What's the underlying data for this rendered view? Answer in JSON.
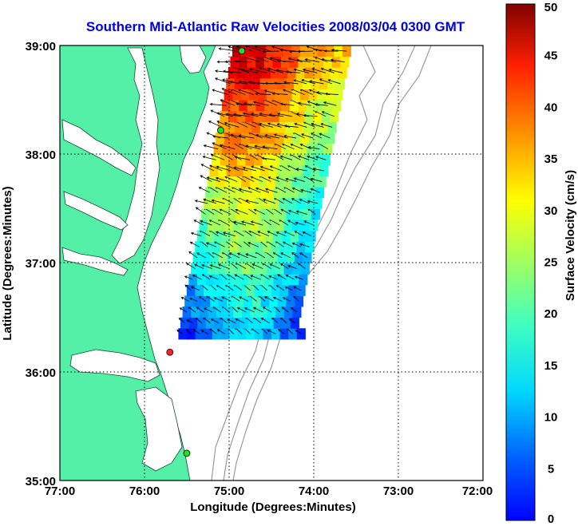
{
  "title": "Southern Mid-Atlantic Raw Velocities 2008/03/04 0300 GMT",
  "x_axis": {
    "label": "Longitude (Degrees:Minutes)",
    "ticks": [
      "77:00",
      "76:00",
      "75:00",
      "74:00",
      "73:00",
      "72:00"
    ]
  },
  "y_axis": {
    "label": "Latitude (Degrees:Minutes)",
    "ticks": [
      "39:00",
      "38:00",
      "37:00",
      "36:00",
      "35:00"
    ]
  },
  "colorbar": {
    "label": "Surface Velocity (cm/s)",
    "ticks": [
      "50",
      "45",
      "40",
      "35",
      "30",
      "25",
      "20",
      "15",
      "10",
      "5",
      "0"
    ],
    "min": 0,
    "max": 50,
    "colormap": "jet"
  },
  "map": {
    "lon_range": [
      -77,
      -72
    ],
    "lat_range": [
      35,
      39
    ],
    "land_color": "#55f0a8",
    "grid": "dotted",
    "velocity_field": {
      "lon_range": [
        -75.6,
        -73.6
      ],
      "lat_range": [
        36.3,
        38.95
      ],
      "arrow_color": "#000000"
    },
    "stations": [
      {
        "color": "green",
        "lon": -74.85,
        "lat": 38.95
      },
      {
        "color": "green",
        "lon": -75.1,
        "lat": 38.22
      },
      {
        "color": "red",
        "lon": -75.7,
        "lat": 36.18
      },
      {
        "color": "green",
        "lon": -75.5,
        "lat": 35.25
      }
    ]
  }
}
